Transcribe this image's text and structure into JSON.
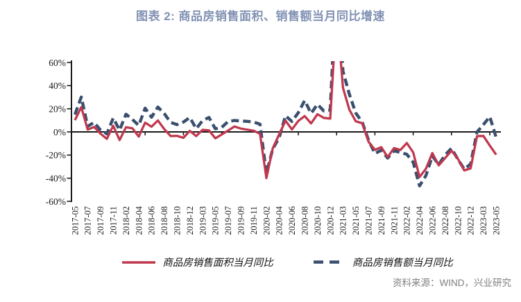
{
  "title": "图表 2: 商品房销售面积、销售额当月同比增速",
  "source": "资料来源：WIND，兴业研究",
  "colors": {
    "title": "#8191b3",
    "axis": "#1a1a1a",
    "source": "#7f7f7f",
    "series_area": "#c0384e",
    "series_amount": "#3a4f6e"
  },
  "chart_data": {
    "type": "line",
    "title": "图表 2: 商品房销售面积、销售额当月同比增速",
    "xlabel": "",
    "ylabel": "",
    "ylim": [
      -60,
      60
    ],
    "y_ticks": [
      "60%",
      "40%",
      "20%",
      "0%",
      "-20%",
      "-40%",
      "-60%"
    ],
    "grid": false,
    "legend_position": "bottom",
    "x": [
      "2017-05",
      "2017-06",
      "2017-07",
      "2017-08",
      "2017-09",
      "2017-10",
      "2017-11",
      "2017-12",
      "2018-02",
      "2018-03",
      "2018-04",
      "2018-05",
      "2018-06",
      "2018-07",
      "2018-08",
      "2018-09",
      "2018-10",
      "2018-11",
      "2018-12",
      "2019-02",
      "2019-03",
      "2019-04",
      "2019-05",
      "2019-06",
      "2019-07",
      "2019-08",
      "2019-09",
      "2019-10",
      "2019-11",
      "2019-12",
      "2020-02",
      "2020-03",
      "2020-04",
      "2020-05",
      "2020-06",
      "2020-07",
      "2020-08",
      "2020-09",
      "2020-10",
      "2020-11",
      "2020-12",
      "2021-02",
      "2021-03",
      "2021-04",
      "2021-05",
      "2021-06",
      "2021-07",
      "2021-08",
      "2021-09",
      "2021-10",
      "2021-11",
      "2021-12",
      "2022-02",
      "2022-03",
      "2022-04",
      "2022-05",
      "2022-06",
      "2022-07",
      "2022-08",
      "2022-09",
      "2022-10",
      "2022-11",
      "2022-12",
      "2023-02",
      "2023-03",
      "2023-04",
      "2023-05"
    ],
    "x_tick_labels": [
      "2017-05",
      "2017-07",
      "2017-09",
      "2017-11",
      "2018-02",
      "2018-04",
      "2018-06",
      "2018-08",
      "2018-10",
      "2018-12",
      "2019-03",
      "2019-05",
      "2019-07",
      "2019-09",
      "2019-11",
      "2020-02",
      "2020-04",
      "2020-06",
      "2020-08",
      "2020-10",
      "2020-12",
      "2021-03",
      "2021-05",
      "2021-07",
      "2021-09",
      "2021-11",
      "2022-02",
      "2022-04",
      "2022-06",
      "2022-08",
      "2022-10",
      "2022-12",
      "2023-03",
      "2023-05"
    ],
    "series": [
      {
        "name": "商品房销售面积当月同比",
        "style": "solid",
        "color": "#c0384e",
        "values": [
          10.2,
          21.4,
          2.0,
          4.3,
          -1.5,
          -6.0,
          5.3,
          -7.0,
          4.1,
          3.2,
          -4.1,
          8.0,
          4.5,
          9.9,
          2.4,
          -3.6,
          -3.4,
          -5.1,
          0.9,
          -3.6,
          1.8,
          1.3,
          -5.5,
          -2.2,
          1.2,
          4.7,
          2.9,
          1.9,
          1.1,
          -1.7,
          -39.9,
          -14.1,
          -2.1,
          9.7,
          2.1,
          9.5,
          13.7,
          7.3,
          15.3,
          12.1,
          11.5,
          104.9,
          38.1,
          19.2,
          9.2,
          7.5,
          -8.5,
          -15.5,
          -13.2,
          -21.7,
          -14.0,
          -15.6,
          -9.6,
          -17.7,
          -39.0,
          -31.8,
          -18.3,
          -28.9,
          -22.6,
          -16.2,
          -23.2,
          -33.3,
          -31.5,
          -3.6,
          -3.5,
          -11.8,
          -19.7
        ]
      },
      {
        "name": "商品房销售额当月同比",
        "style": "dashed",
        "color": "#3a4f6e",
        "values": [
          15.0,
          30.1,
          4.8,
          8.2,
          1.6,
          -1.7,
          12.0,
          1.5,
          15.3,
          10.8,
          5.6,
          20.5,
          12.7,
          21.5,
          15.8,
          8.2,
          6.3,
          8.5,
          12.5,
          2.8,
          9.8,
          12.5,
          2.7,
          3.9,
          9.0,
          9.9,
          9.4,
          9.1,
          8.5,
          6.7,
          -35.9,
          -14.6,
          -5.0,
          14.0,
          9.0,
          16.6,
          27.1,
          16.0,
          23.9,
          18.1,
          18.9,
          133.4,
          52.4,
          32.5,
          16.3,
          8.6,
          -7.1,
          -18.7,
          -15.8,
          -22.6,
          -16.3,
          -17.8,
          -19.3,
          -26.2,
          -46.6,
          -37.7,
          -20.8,
          -28.2,
          -19.9,
          -14.2,
          -23.7,
          -32.2,
          -27.7,
          -0.1,
          6.3,
          13.2,
          -4.8
        ]
      }
    ]
  },
  "legend": {
    "area_label": "商品房销售面积当月同比",
    "amount_label": "商品房销售额当月同比"
  }
}
